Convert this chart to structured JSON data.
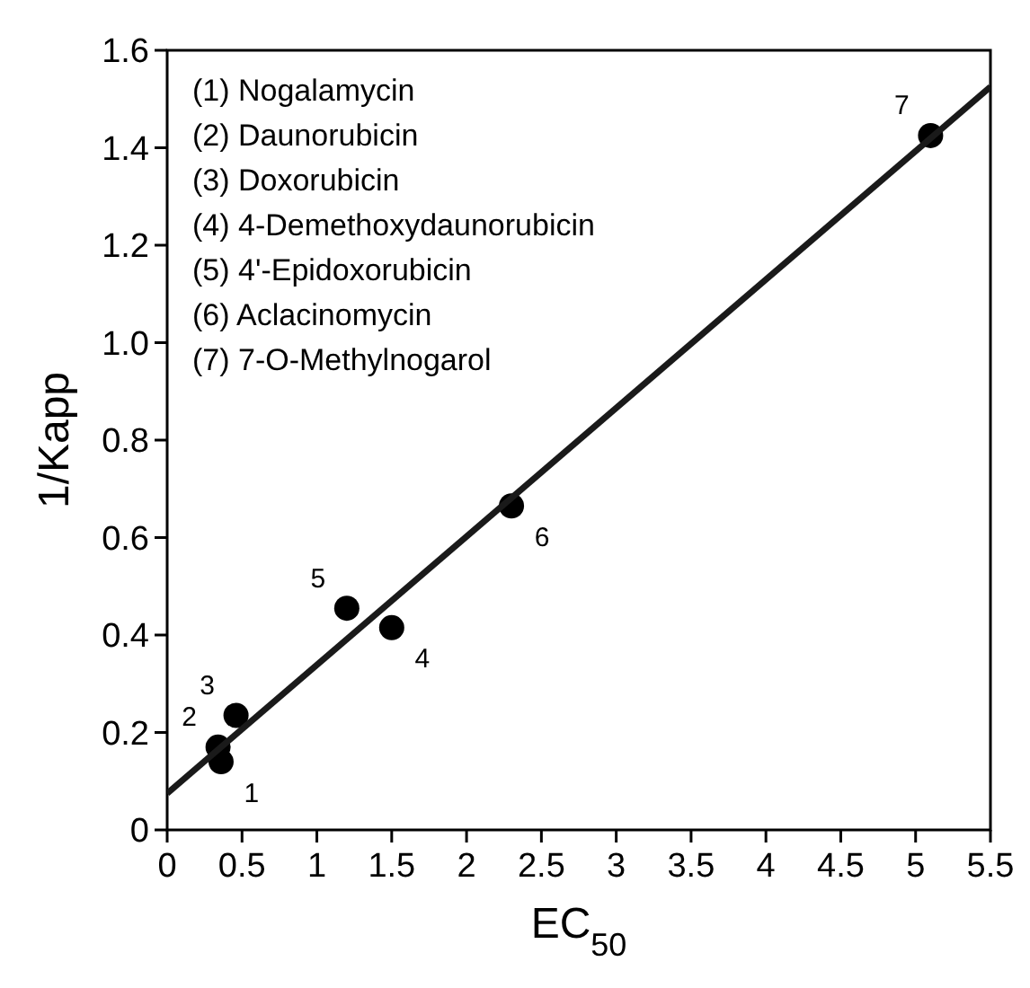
{
  "chart_data": {
    "type": "scatter",
    "xlabel": "EC$_{50}$",
    "ylabel": "1/Kapp",
    "xlim": [
      0,
      5.5
    ],
    "xticks": [
      0,
      0.5,
      1,
      1.5,
      2,
      2.5,
      3,
      3.5,
      4,
      4.5,
      5,
      5.5
    ],
    "ylim": [
      0,
      1.6
    ],
    "yticks": [
      0,
      0.2,
      0.4,
      0.6,
      0.8,
      {
        "value": 1,
        "label": "1.0"
      },
      1.2,
      1.4,
      1.6
    ],
    "grid": false,
    "series": [
      {
        "color": "#000000",
        "marker": "circle",
        "x": [
          0.36,
          0.34,
          0.46,
          1.5,
          1.2,
          2.3,
          5.1
        ],
        "values": [
          0.14,
          0.17,
          0.235,
          0.415,
          0.455,
          0.665,
          1.425
        ]
      },
      {
        "type": "line",
        "color": "#1a1a1a",
        "line_style": "solid",
        "x": [
          0,
          5.5
        ],
        "values": [
          0.075,
          1.525
        ]
      }
    ],
    "annotations": [
      "(1) Nogalamycin",
      "(2) Daunorubicin",
      "(3) Doxorubicin",
      "(4) 4-Demethoxydaunorubicin",
      "(5) 4'-Epidoxorubicin",
      "(6) Aclacinomycin",
      "(7) 7-O-Methylnogarol",
      {
        "text": "1",
        "x": 0.36,
        "y": 0.14
      },
      {
        "text": "2",
        "x": 0.34,
        "y": 0.17
      },
      {
        "text": "3",
        "x": 0.46,
        "y": 0.235
      },
      {
        "text": "4",
        "x": 1.5,
        "y": 0.415
      },
      {
        "text": "5",
        "x": 1.2,
        "y": 0.455
      },
      {
        "text": "6",
        "x": 2.3,
        "y": 0.665
      },
      {
        "text": "7",
        "x": 5.1,
        "y": 1.425
      }
    ]
  }
}
